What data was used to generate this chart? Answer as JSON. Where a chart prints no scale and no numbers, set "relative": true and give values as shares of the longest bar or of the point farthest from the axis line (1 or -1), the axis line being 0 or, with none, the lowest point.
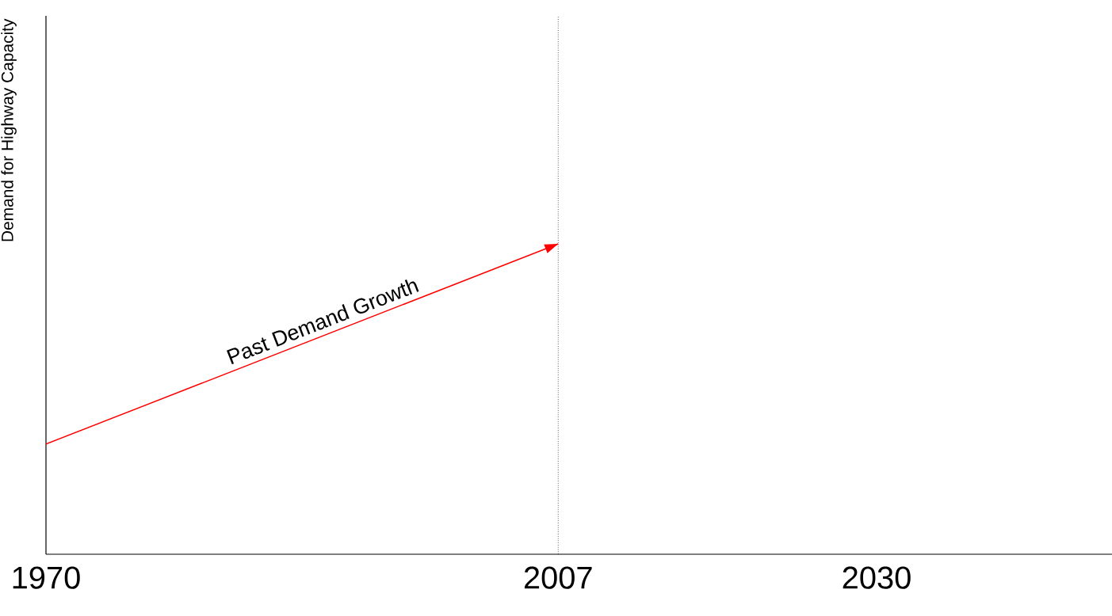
{
  "chart_data": {
    "type": "line",
    "ylabel": "Demand for Highway Capacity",
    "relative": true,
    "x": [
      1970,
      2007
    ],
    "series": [
      {
        "name": "Past Demand Growth",
        "color": "#ff0000",
        "values": [
          0.355,
          1
        ]
      }
    ],
    "xlim": [
      1970,
      2047
    ],
    "xticks": [
      1970,
      2007,
      2030
    ],
    "ref_lines": [
      {
        "axis": "x",
        "value": 2007,
        "line_style": "dotted"
      }
    ]
  }
}
